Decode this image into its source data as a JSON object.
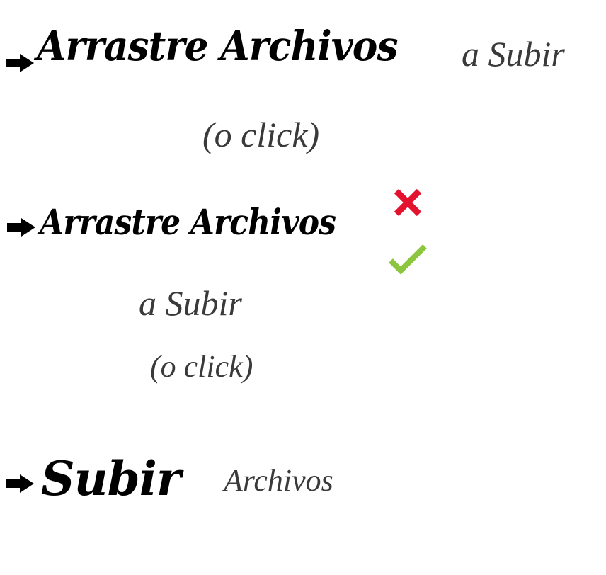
{
  "option_1": {
    "arrow_icon": "right-arrow-icon",
    "main_text": "Arrastre Archivos",
    "sub_text": "a Subir",
    "click_text": "(o click)"
  },
  "option_2": {
    "arrow_icon": "right-arrow-icon",
    "main_text": "Arrastre Archivos",
    "sub_text": "a Subir",
    "click_text": "(o click)",
    "reject_icon": "x-mark-icon",
    "accept_icon": "checkmark-icon"
  },
  "option_3": {
    "arrow_icon": "right-arrow-icon",
    "main_text": "Subir",
    "sub_text": "Archivos"
  },
  "colors": {
    "heavy_text": "#000000",
    "light_text": "#3a3a3a",
    "reject": "#e3122f",
    "accept": "#8cc63f"
  }
}
